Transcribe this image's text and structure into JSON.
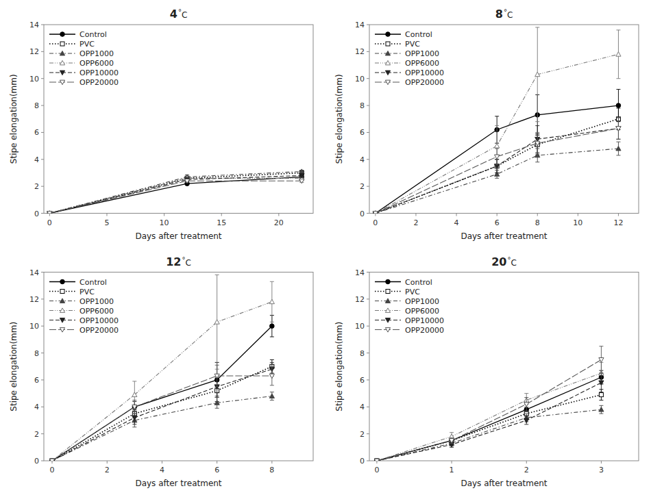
{
  "chart_data": [
    {
      "type": "line",
      "annotations": [
        "4",
        "°",
        "C"
      ],
      "xlabel": "Days after treatment",
      "ylabel": "Stipe elongation(mm)",
      "x": [
        0,
        12,
        22
      ],
      "xlim": [
        -0.5,
        23
      ],
      "xticks": [
        0,
        5,
        10,
        15,
        20
      ],
      "ylim": [
        0,
        14
      ],
      "yticks": [
        0,
        2,
        4,
        6,
        8,
        10,
        12,
        14
      ],
      "legend": "upper left",
      "grid": false,
      "series": [
        {
          "name": "Control",
          "color": "#000000",
          "marker": "circle-filled",
          "line_style": "solid",
          "values": [
            0,
            2.2,
            2.7
          ],
          "errors": [
            0,
            0.1,
            0.15
          ]
        },
        {
          "name": "PVC",
          "color": "#000000",
          "marker": "square-open",
          "line_style": "dotted",
          "values": [
            0,
            2.6,
            3.0
          ],
          "errors": [
            0,
            0.1,
            0.1
          ]
        },
        {
          "name": "OPP1000",
          "color": "#444444",
          "marker": "triangle-up-filled",
          "line_style": "dashdot",
          "values": [
            0,
            2.7,
            3.1
          ],
          "errors": [
            0,
            0.15,
            0.1
          ]
        },
        {
          "name": "OPP6000",
          "color": "#777777",
          "marker": "triangle-up-open",
          "line_style": "dashdotdot",
          "values": [
            0,
            2.6,
            2.6
          ],
          "errors": [
            0,
            0.1,
            0.1
          ]
        },
        {
          "name": "OPP10000",
          "color": "#222222",
          "marker": "triangle-down-filled",
          "line_style": "dashed",
          "values": [
            0,
            2.5,
            2.8
          ],
          "errors": [
            0,
            0.1,
            0.15
          ]
        },
        {
          "name": "OPP20000",
          "color": "#555555",
          "marker": "triangle-down-open",
          "line_style": "longdashed",
          "values": [
            0,
            2.4,
            2.4
          ],
          "errors": [
            0,
            0.1,
            0.1
          ]
        }
      ]
    },
    {
      "type": "line",
      "annotations": [
        "8",
        "°",
        "C"
      ],
      "xlabel": "Days after treatment",
      "ylabel": "Stipe elongation(mm)",
      "x": [
        0,
        6,
        8,
        12
      ],
      "xlim": [
        -0.3,
        13
      ],
      "xticks": [
        0,
        2,
        4,
        6,
        8,
        10,
        12
      ],
      "ylim": [
        0,
        14
      ],
      "yticks": [
        0,
        2,
        4,
        6,
        8,
        10,
        12,
        14
      ],
      "legend": "upper left",
      "grid": false,
      "series": [
        {
          "name": "Control",
          "color": "#000000",
          "marker": "circle-filled",
          "line_style": "solid",
          "values": [
            0,
            6.2,
            7.3,
            8.0
          ],
          "errors": [
            0,
            1.0,
            1.5,
            1.2
          ]
        },
        {
          "name": "PVC",
          "color": "#000000",
          "marker": "square-open",
          "line_style": "dotted",
          "values": [
            0,
            3.5,
            5.1,
            7.0
          ],
          "errors": [
            0,
            0.5,
            0.8,
            0.8
          ]
        },
        {
          "name": "OPP1000",
          "color": "#444444",
          "marker": "triangle-up-filled",
          "line_style": "dashdot",
          "values": [
            0,
            2.9,
            4.3,
            4.8
          ],
          "errors": [
            0,
            0.3,
            0.5,
            0.5
          ]
        },
        {
          "name": "OPP6000",
          "color": "#777777",
          "marker": "triangle-up-open",
          "line_style": "dashdotdot",
          "values": [
            0,
            5.0,
            10.3,
            11.8
          ],
          "errors": [
            0,
            1.5,
            3.5,
            1.8
          ]
        },
        {
          "name": "OPP10000",
          "color": "#222222",
          "marker": "triangle-down-filled",
          "line_style": "dashed",
          "values": [
            0,
            3.5,
            5.5,
            6.3
          ],
          "errors": [
            0,
            0.5,
            1.0,
            0.8
          ]
        },
        {
          "name": "OPP20000",
          "color": "#555555",
          "marker": "triangle-down-open",
          "line_style": "longdashed",
          "values": [
            0,
            4.2,
            5.2,
            6.3
          ],
          "errors": [
            0,
            0.6,
            0.8,
            0.8
          ]
        }
      ]
    },
    {
      "type": "line",
      "annotations": [
        "12",
        "°",
        "C"
      ],
      "xlabel": "Days after treatment",
      "ylabel": "Stipe elongation(mm)",
      "x": [
        0,
        3,
        6,
        8
      ],
      "xlim": [
        -0.3,
        9.5
      ],
      "xticks": [
        0,
        2,
        4,
        6,
        8
      ],
      "ylim": [
        0,
        14
      ],
      "yticks": [
        0,
        2,
        4,
        6,
        8,
        10,
        12,
        14
      ],
      "legend": "upper left",
      "grid": false,
      "series": [
        {
          "name": "Control",
          "color": "#000000",
          "marker": "circle-filled",
          "line_style": "solid",
          "values": [
            0,
            4.0,
            6.0,
            10.0
          ],
          "errors": [
            0,
            0.4,
            1.3,
            0.8
          ]
        },
        {
          "name": "PVC",
          "color": "#000000",
          "marker": "square-open",
          "line_style": "dotted",
          "values": [
            0,
            3.5,
            5.2,
            7.0
          ],
          "errors": [
            0,
            0.3,
            0.8,
            0.5
          ]
        },
        {
          "name": "OPP1000",
          "color": "#444444",
          "marker": "triangle-up-filled",
          "line_style": "dashdot",
          "values": [
            0,
            3.0,
            4.3,
            4.8
          ],
          "errors": [
            0,
            0.5,
            0.4,
            0.3
          ]
        },
        {
          "name": "OPP6000",
          "color": "#777777",
          "marker": "triangle-up-open",
          "line_style": "dashdotdot",
          "values": [
            0,
            4.9,
            10.3,
            11.8
          ],
          "errors": [
            0,
            1.0,
            3.5,
            1.5
          ]
        },
        {
          "name": "OPP10000",
          "color": "#222222",
          "marker": "triangle-down-filled",
          "line_style": "dashed",
          "values": [
            0,
            3.2,
            5.5,
            6.8
          ],
          "errors": [
            0,
            0.5,
            0.7,
            0.5
          ]
        },
        {
          "name": "OPP20000",
          "color": "#555555",
          "marker": "triangle-down-open",
          "line_style": "longdashed",
          "values": [
            0,
            4.0,
            6.3,
            6.3
          ],
          "errors": [
            0,
            0.5,
            0.8,
            0.7
          ]
        }
      ]
    },
    {
      "type": "line",
      "annotations": [
        "20",
        "°",
        "C"
      ],
      "xlabel": "Days after treatment",
      "ylabel": "Stipe elongation(mm)",
      "x": [
        0,
        1,
        2,
        3
      ],
      "xlim": [
        -0.1,
        3.5
      ],
      "xticks": [
        0,
        1,
        2,
        3
      ],
      "ylim": [
        0,
        14
      ],
      "yticks": [
        0,
        2,
        4,
        6,
        8,
        10,
        12,
        14
      ],
      "legend": "upper left",
      "grid": false,
      "series": [
        {
          "name": "Control",
          "color": "#000000",
          "marker": "circle-filled",
          "line_style": "solid",
          "values": [
            0,
            1.5,
            3.8,
            6.2
          ],
          "errors": [
            0,
            0.2,
            0.4,
            0.5
          ]
        },
        {
          "name": "PVC",
          "color": "#000000",
          "marker": "square-open",
          "line_style": "dotted",
          "values": [
            0,
            1.5,
            3.5,
            4.9
          ],
          "errors": [
            0,
            0.2,
            0.4,
            0.4
          ]
        },
        {
          "name": "OPP1000",
          "color": "#444444",
          "marker": "triangle-up-filled",
          "line_style": "dashdot",
          "values": [
            0,
            1.3,
            3.2,
            3.8
          ],
          "errors": [
            0,
            0.2,
            0.3,
            0.3
          ]
        },
        {
          "name": "OPP6000",
          "color": "#777777",
          "marker": "triangle-up-open",
          "line_style": "dashdotdot",
          "values": [
            0,
            1.8,
            4.5,
            6.5
          ],
          "errors": [
            0,
            0.3,
            0.5,
            0.8
          ]
        },
        {
          "name": "OPP10000",
          "color": "#222222",
          "marker": "triangle-down-filled",
          "line_style": "dashed",
          "values": [
            0,
            1.2,
            3.0,
            5.8
          ],
          "errors": [
            0,
            0.2,
            0.3,
            0.7
          ]
        },
        {
          "name": "OPP20000",
          "color": "#555555",
          "marker": "triangle-down-open",
          "line_style": "longdashed",
          "values": [
            0,
            1.5,
            4.2,
            7.5
          ],
          "errors": [
            0,
            0.2,
            0.5,
            1.0
          ]
        }
      ]
    }
  ]
}
